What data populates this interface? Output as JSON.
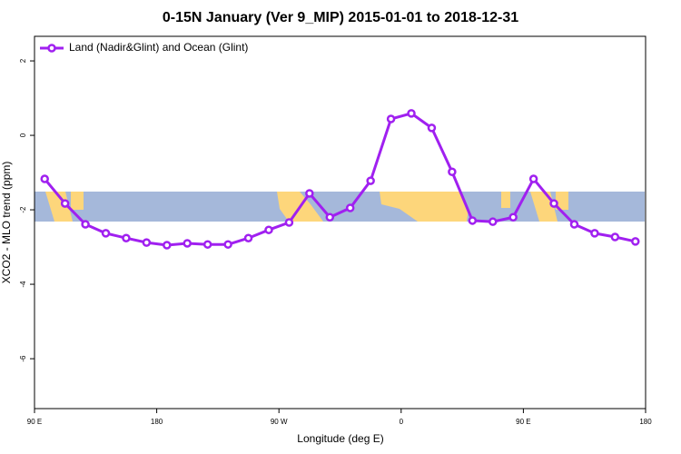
{
  "chart_data": {
    "type": "line",
    "title": "0-15N January (Ver 9_MIP)   2015-01-01 to 2018-12-31",
    "xlabel": "Longitude (deg E)",
    "ylabel": "XCO2 - MLO trend (ppm)",
    "x": [
      97.5,
      112.5,
      127.5,
      142.5,
      157.5,
      172.5,
      187.5,
      202.5,
      217.5,
      232.5,
      247.5,
      262.5,
      277.5,
      292.5,
      307.5,
      322.5,
      337.5,
      352.5,
      367.5,
      382.5,
      397.5,
      412.5,
      427.5,
      442.5,
      457.5,
      472.5,
      487.5,
      502.5,
      517.5,
      532.5
    ],
    "series": [
      {
        "name": "Land (Nadir&Glint) and Ocean (Glint)",
        "color": "#a020f0",
        "values": [
          -1.17,
          -1.83,
          -2.39,
          -2.63,
          -2.76,
          -2.88,
          -2.95,
          -2.9,
          -2.93,
          -2.93,
          -2.76,
          -2.54,
          -2.34,
          -1.56,
          -2.2,
          -1.95,
          -1.22,
          0.44,
          0.59,
          0.2,
          -0.98,
          -2.29,
          -2.32,
          -2.2,
          -1.17,
          -1.83,
          -2.39,
          -2.63,
          -2.73,
          -2.85
        ]
      }
    ],
    "xlim": [
      90,
      540
    ],
    "xticks": [
      {
        "value": 90,
        "label": "90 E"
      },
      {
        "value": 180,
        "label": "180"
      },
      {
        "value": 270,
        "label": "90 W"
      },
      {
        "value": 360,
        "label": "0"
      },
      {
        "value": 450,
        "label": "90 E"
      },
      {
        "value": 540,
        "label": "180"
      }
    ],
    "ylim": [
      -7.34,
      2.66
    ],
    "yticks": [
      2,
      0,
      -2,
      -4,
      -6
    ],
    "legend": "top-left"
  }
}
